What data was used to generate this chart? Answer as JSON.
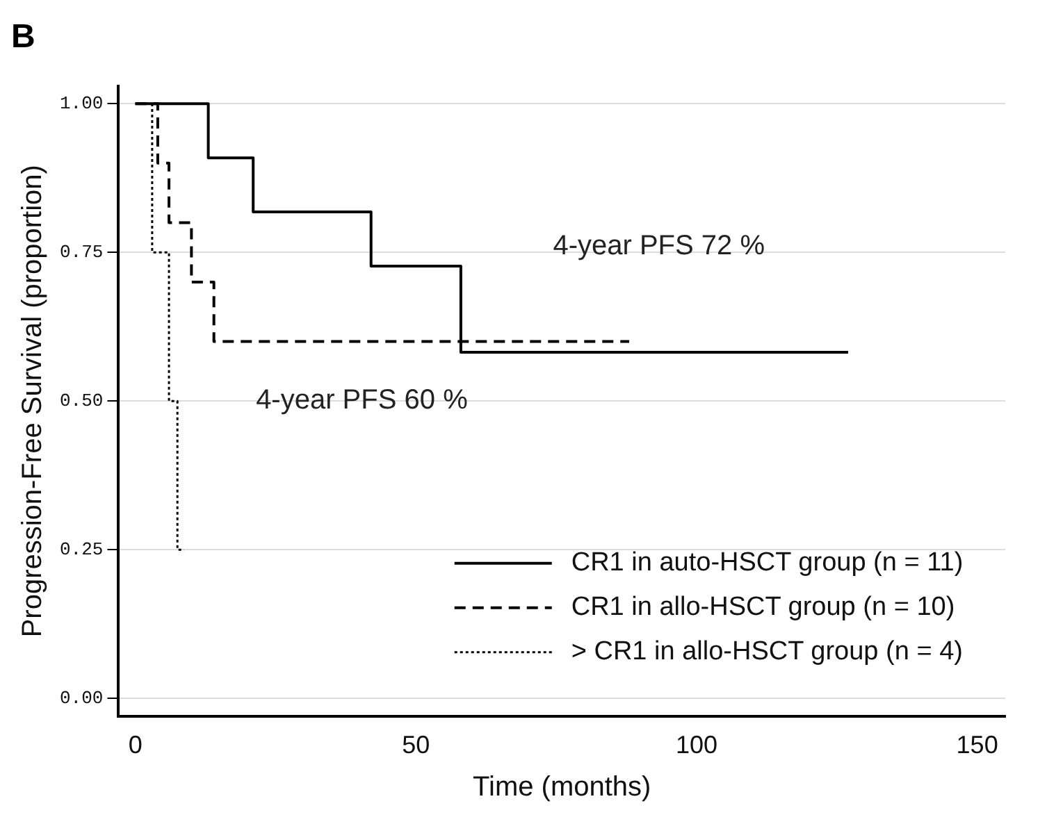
{
  "chart_data": {
    "type": "step",
    "title": "B",
    "xlabel": "Time (months)",
    "ylabel": "Progression-Free Survival (proportion)",
    "xlim": [
      -3,
      155
    ],
    "xticks": [
      0,
      50,
      100,
      150
    ],
    "ylim": [
      -0.03,
      1.03
    ],
    "yticks": [
      {
        "value": 0,
        "label": "0.00"
      },
      {
        "value": 0.25,
        "label": "0.25"
      },
      {
        "value": 0.5,
        "label": "0.50"
      },
      {
        "value": 0.75,
        "label": "0.75"
      },
      {
        "value": 1,
        "label": "1.00"
      }
    ],
    "grid": "y",
    "legend": "bottom right",
    "marker": "none",
    "series": [
      {
        "name": "CR1 in auto-HSCT group (n = 11)",
        "color": "#000000",
        "line_style": "solid",
        "x": [
          0,
          13,
          21,
          42,
          58,
          127
        ],
        "values": [
          1,
          0.909,
          0.818,
          0.727,
          0.582,
          0.582
        ]
      },
      {
        "name": "CR1 in allo-HSCT group (n = 10)",
        "color": "#000000",
        "line_style": "dashed",
        "x": [
          0,
          4,
          6,
          10,
          14,
          88
        ],
        "values": [
          1,
          0.9,
          0.8,
          0.7,
          0.6,
          0.6
        ]
      },
      {
        "name": "> CR1 in allo-HSCT group (n = 4)",
        "color": "#000000",
        "line_style": "dotted",
        "x": [
          0,
          3,
          6,
          7.5,
          8.7
        ],
        "values": [
          1,
          0.75,
          0.5,
          0.25,
          0.25
        ]
      }
    ],
    "annotations": [
      "4-year PFS 72 %",
      "4-year PFS 60 %"
    ]
  }
}
